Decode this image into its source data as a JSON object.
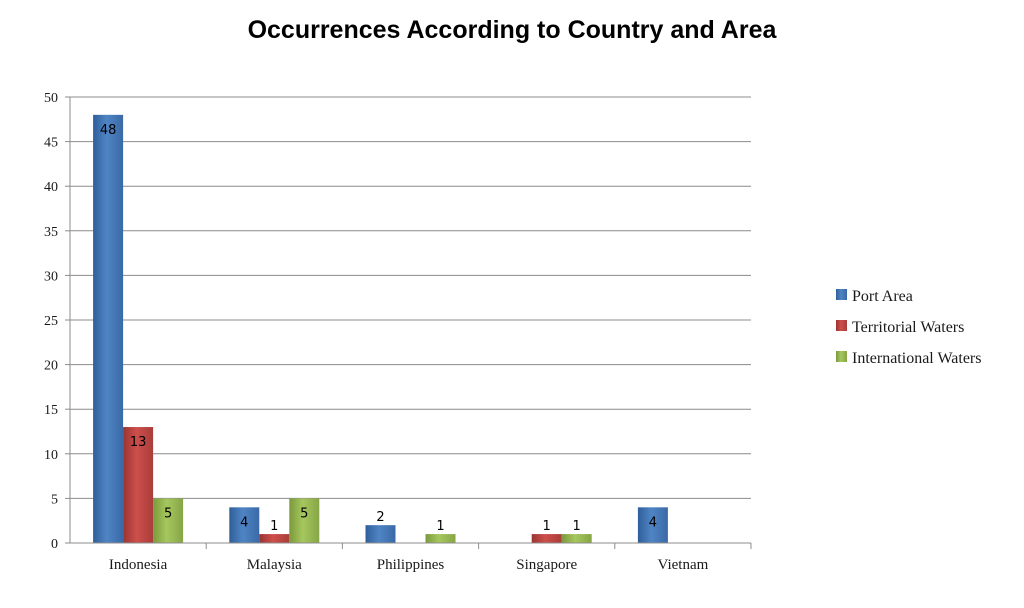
{
  "chart_data": {
    "type": "bar",
    "title": "Occurrences According to Country and Area",
    "xlabel": "",
    "ylabel": "",
    "ylim": [
      0,
      50
    ],
    "yticks": [
      0,
      5,
      10,
      15,
      20,
      25,
      30,
      35,
      40,
      45,
      50
    ],
    "grid": true,
    "legend_position": "right",
    "categories": [
      "Indonesia",
      "Malaysia",
      "Philippines",
      "Singapore",
      "Vietnam"
    ],
    "series": [
      {
        "name": "Port Area",
        "color": "#4a7ebb",
        "values": [
          48,
          4,
          2,
          null,
          4
        ]
      },
      {
        "name": "Territorial Waters",
        "color": "#be4b48",
        "values": [
          13,
          1,
          null,
          1,
          null
        ]
      },
      {
        "name": "International Waters",
        "color": "#98b954",
        "values": [
          5,
          5,
          1,
          1,
          null
        ]
      }
    ]
  }
}
